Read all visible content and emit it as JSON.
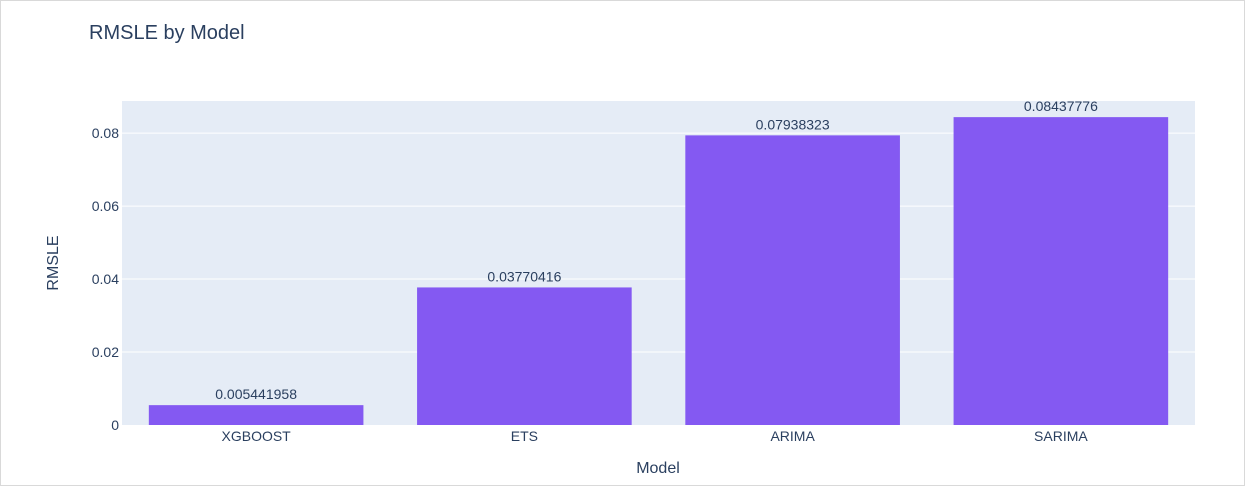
{
  "chart_data": {
    "type": "bar",
    "title": "RMSLE by Model",
    "xlabel": "Model",
    "ylabel": "RMSLE",
    "categories": [
      "XGBOOST",
      "ETS",
      "ARIMA",
      "SARIMA"
    ],
    "values": [
      0.005441958,
      0.03770416,
      0.07938323,
      0.08437776
    ],
    "value_labels": [
      "0.005441958",
      "0.03770416",
      "0.07938323",
      "0.08437776"
    ],
    "yticks": [
      0,
      0.02,
      0.04,
      0.06,
      0.08
    ],
    "ytick_labels": [
      "0",
      "0.02",
      "0.04",
      "0.06",
      "0.08"
    ],
    "ylim": [
      0,
      0.0888
    ],
    "grid": true,
    "bar_color": "#8459f2",
    "plot_background": "#e5ecf6",
    "text_color": "#2a3f5f"
  }
}
